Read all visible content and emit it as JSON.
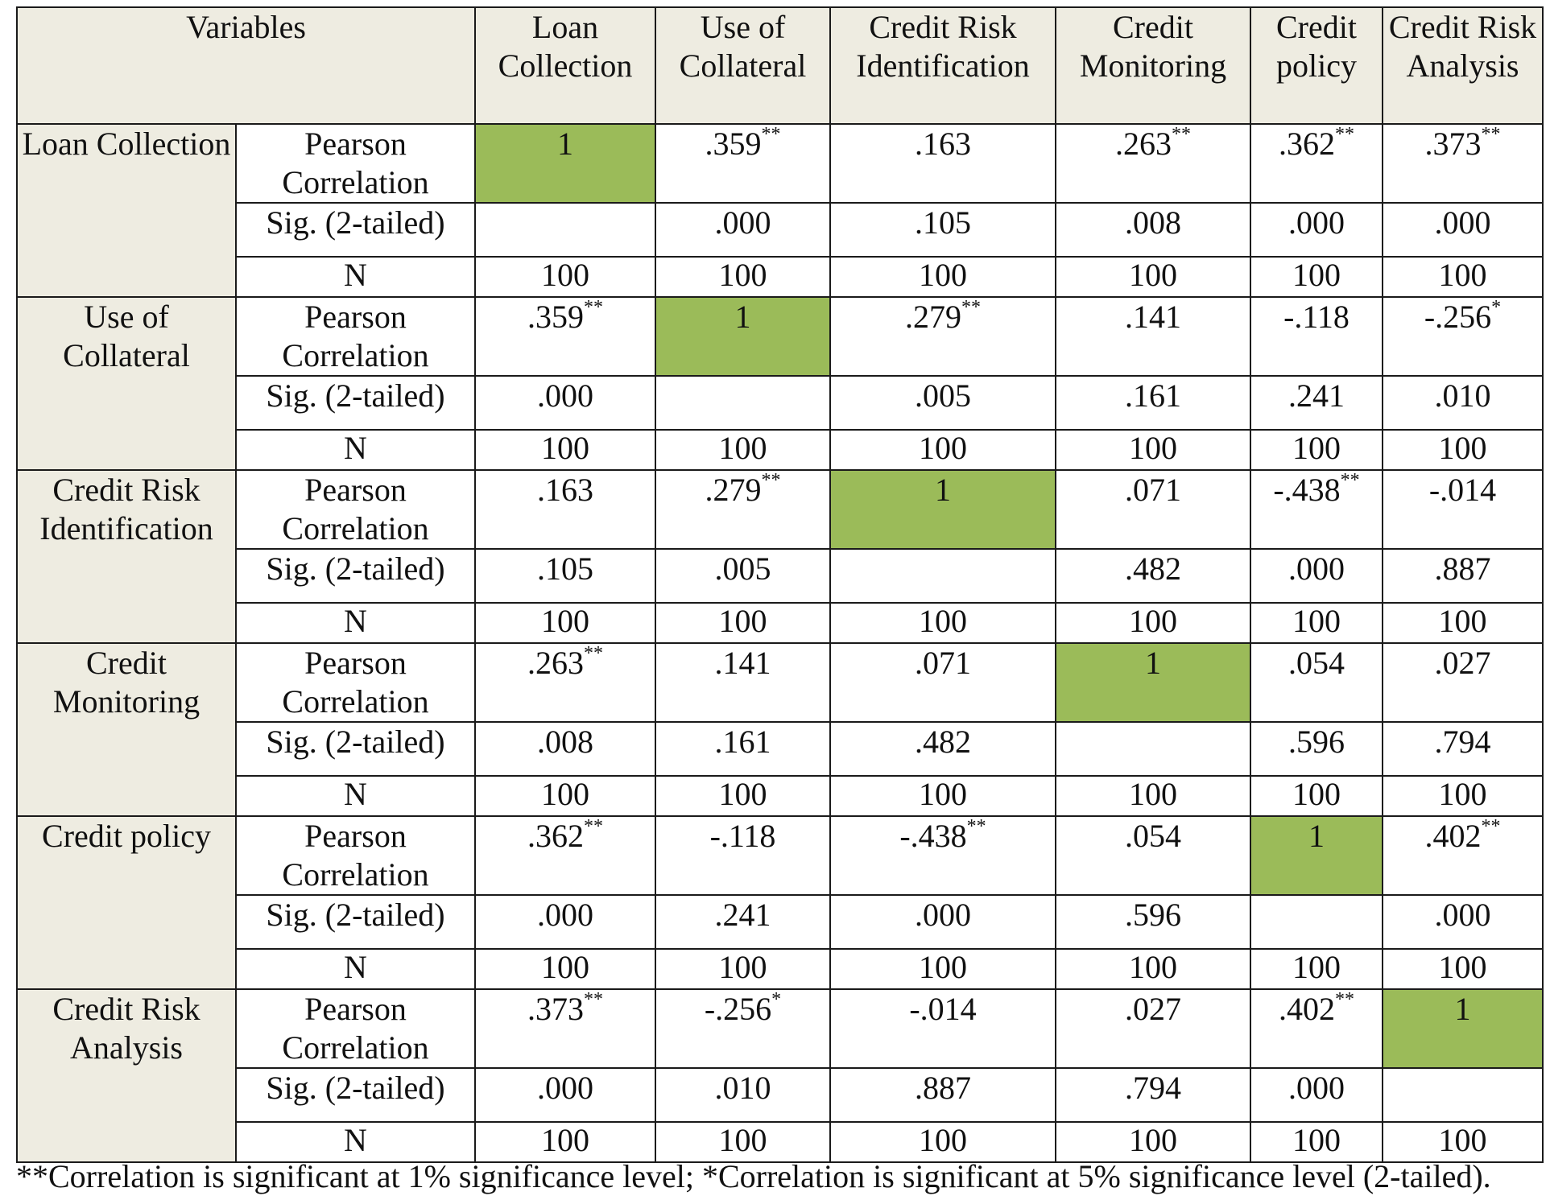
{
  "title": "",
  "headers": [
    "Variables",
    "Loan Collection",
    "Use of Collateral",
    "Credit Risk Identification",
    "Credit Monitoring",
    "Credit policy",
    "Credit Risk Analysis"
  ],
  "stat_labels": {
    "pearson": "Pearson Correlation",
    "sig": "Sig. (2-tailed)",
    "n": "N"
  },
  "rows": [
    {
      "variable": "Loan Collection",
      "pearson": [
        [
          "1",
          ""
        ],
        [
          ".359",
          "**"
        ],
        [
          ".163",
          ""
        ],
        [
          ".263",
          "**"
        ],
        [
          ".362",
          "**"
        ],
        [
          ".373",
          "**"
        ]
      ],
      "sig": [
        "",
        ".000",
        ".105",
        ".008",
        ".000",
        ".000"
      ],
      "n": [
        "100",
        "100",
        "100",
        "100",
        "100",
        "100"
      ]
    },
    {
      "variable": "Use of Collateral",
      "pearson": [
        [
          ".359",
          "**"
        ],
        [
          "1",
          ""
        ],
        [
          ".279",
          "**"
        ],
        [
          ".141",
          ""
        ],
        [
          "-.118",
          ""
        ],
        [
          "-.256",
          "*"
        ]
      ],
      "sig": [
        ".000",
        "",
        ".005",
        ".161",
        ".241",
        ".010"
      ],
      "n": [
        "100",
        "100",
        "100",
        "100",
        "100",
        "100"
      ]
    },
    {
      "variable": "Credit Risk Identification",
      "pearson": [
        [
          ".163",
          ""
        ],
        [
          ".279",
          "**"
        ],
        [
          "1",
          ""
        ],
        [
          ".071",
          ""
        ],
        [
          "-.438",
          "**"
        ],
        [
          "-.014",
          ""
        ]
      ],
      "sig": [
        ".105",
        ".005",
        "",
        ".482",
        ".000",
        ".887"
      ],
      "n": [
        "100",
        "100",
        "100",
        "100",
        "100",
        "100"
      ]
    },
    {
      "variable": "Credit Monitoring",
      "pearson": [
        [
          ".263",
          "**"
        ],
        [
          ".141",
          ""
        ],
        [
          ".071",
          ""
        ],
        [
          "1",
          ""
        ],
        [
          ".054",
          ""
        ],
        [
          ".027",
          ""
        ]
      ],
      "sig": [
        ".008",
        ".161",
        ".482",
        "",
        ".596",
        ".794"
      ],
      "n": [
        "100",
        "100",
        "100",
        "100",
        "100",
        "100"
      ]
    },
    {
      "variable": "Credit policy",
      "pearson": [
        [
          ".362",
          "**"
        ],
        [
          "-.118",
          ""
        ],
        [
          "-.438",
          "**"
        ],
        [
          ".054",
          ""
        ],
        [
          "1",
          ""
        ],
        [
          ".402",
          "**"
        ]
      ],
      "sig": [
        ".000",
        ".241",
        ".000",
        ".596",
        "",
        ".000"
      ],
      "n": [
        "100",
        "100",
        "100",
        "100",
        "100",
        "100"
      ]
    },
    {
      "variable": "Credit Risk Analysis",
      "pearson": [
        [
          ".373",
          "**"
        ],
        [
          "-.256",
          "*"
        ],
        [
          "-.014",
          ""
        ],
        [
          ".027",
          ""
        ],
        [
          ".402",
          "**"
        ],
        [
          "1",
          ""
        ]
      ],
      "sig": [
        ".000",
        ".010",
        ".887",
        ".794",
        ".000",
        ""
      ],
      "n": [
        "100",
        "100",
        "100",
        "100",
        "100",
        "100"
      ]
    }
  ],
  "footnote": "**Correlation is significant at 1% significance level; *Correlation is significant at 5% significance level (2-tailed).",
  "colors": {
    "header_bg": "#eeece1",
    "diagonal": "#9bbb59",
    "border": "#1a1a1a"
  }
}
